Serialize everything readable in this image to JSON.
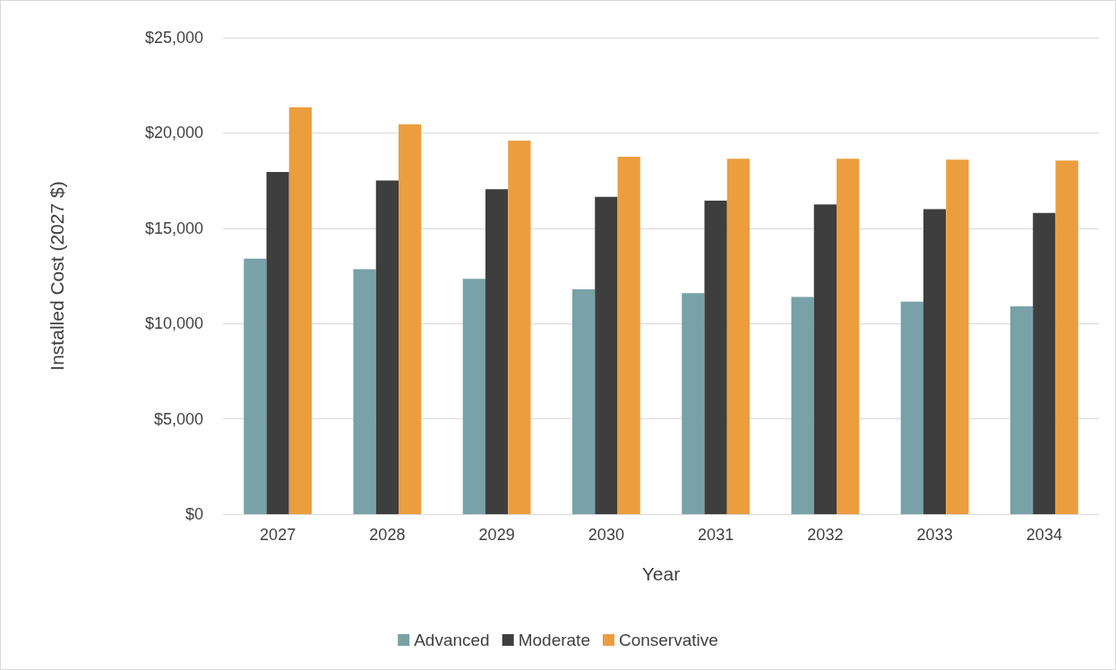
{
  "chart_data": {
    "type": "bar",
    "xlabel": "Year",
    "ylabel": "Installed Cost (2027 $)",
    "categories": [
      "2027",
      "2028",
      "2029",
      "2030",
      "2031",
      "2032",
      "2033",
      "2034"
    ],
    "series": [
      {
        "name": "Advanced",
        "color": "#78a2a7",
        "values": [
          13400,
          12850,
          12350,
          11800,
          11600,
          11400,
          11150,
          10900
        ]
      },
      {
        "name": "Moderate",
        "color": "#3e3e3e",
        "values": [
          17950,
          17500,
          17050,
          16650,
          16450,
          16250,
          16000,
          15800
        ]
      },
      {
        "name": "Conservative",
        "color": "#ec9d3e",
        "values": [
          21350,
          20450,
          19600,
          18750,
          18650,
          18650,
          18600,
          18550
        ]
      }
    ],
    "ylim": [
      0,
      25000
    ],
    "yticks": [
      {
        "value": 0,
        "label": "$0"
      },
      {
        "value": 5000,
        "label": "$5,000"
      },
      {
        "value": 10000,
        "label": "$10,000"
      },
      {
        "value": 15000,
        "label": "$15,000"
      },
      {
        "value": 20000,
        "label": "$20,000"
      },
      {
        "value": 25000,
        "label": "$25,000"
      }
    ],
    "grid": "y",
    "legend": "bottom"
  }
}
